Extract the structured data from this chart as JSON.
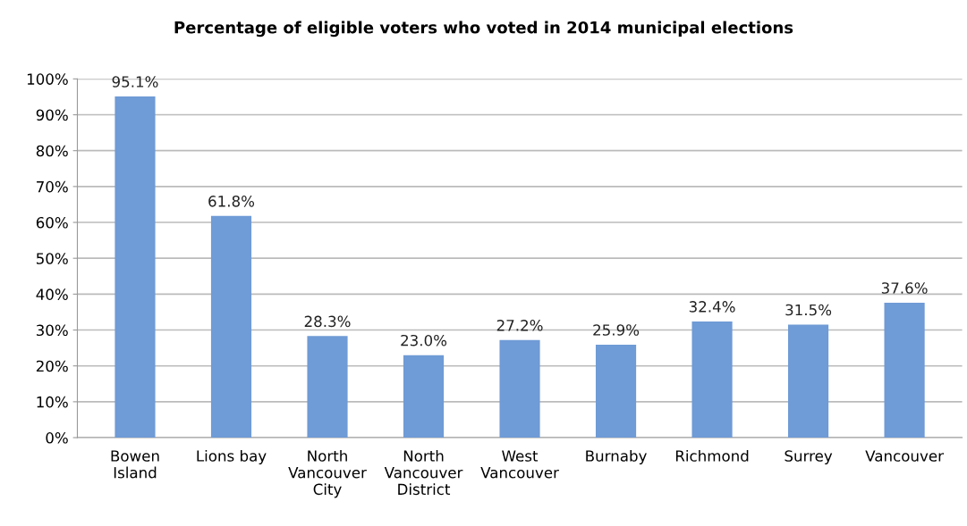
{
  "chart_data": {
    "type": "bar",
    "title": "Percentage of eligible voters who voted in 2014 municipal elections",
    "categories": [
      "Bowen\nIsland",
      "Lions bay",
      "North\nVancouver\nCity",
      "North\nVancouver\nDistrict",
      "West\nVancouver",
      "Burnaby",
      "Richmond",
      "Surrey",
      "Vancouver"
    ],
    "values": [
      95.1,
      61.8,
      28.3,
      23.0,
      27.2,
      25.9,
      32.4,
      31.5,
      37.6
    ],
    "value_labels": [
      "95.1%",
      "61.8%",
      "28.3%",
      "23.0%",
      "27.2%",
      "25.9%",
      "32.4%",
      "31.5%",
      "37.6%"
    ],
    "color": "#6f9bd6",
    "ylim": [
      0,
      100
    ],
    "yticks": [
      {
        "value": 0,
        "label": "0%"
      },
      {
        "value": 10,
        "label": "10%"
      },
      {
        "value": 20,
        "label": "20%"
      },
      {
        "value": 30,
        "label": "30%"
      },
      {
        "value": 40,
        "label": "40%"
      },
      {
        "value": 50,
        "label": "50%"
      },
      {
        "value": 60,
        "label": "60%"
      },
      {
        "value": 70,
        "label": "70%"
      },
      {
        "value": 80,
        "label": "80%"
      },
      {
        "value": 90,
        "label": "90%"
      },
      {
        "value": 100,
        "label": "100%"
      }
    ],
    "grid": "y",
    "legend": false
  }
}
